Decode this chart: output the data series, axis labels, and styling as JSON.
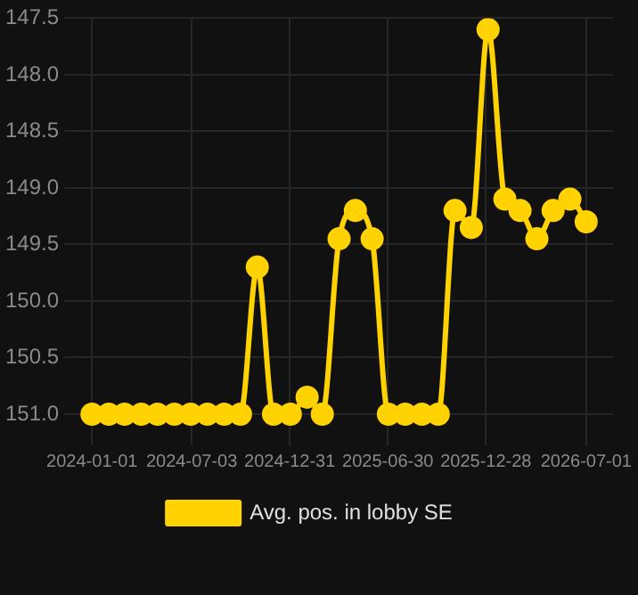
{
  "chart_data": {
    "type": "line",
    "x": [
      "2024-01",
      "2024-02",
      "2024-03",
      "2024-04",
      "2024-05",
      "2024-06",
      "2024-07",
      "2024-08",
      "2024-09",
      "2024-10",
      "2024-11",
      "2024-12",
      "2025-01",
      "2025-02",
      "2025-03",
      "2025-04",
      "2025-05",
      "2025-06",
      "2025-07",
      "2025-08",
      "2025-09",
      "2025-10",
      "2025-11",
      "2025-12",
      "2026-01",
      "2026-02",
      "2026-03",
      "2026-04",
      "2026-05",
      "2026-06",
      "2026-07"
    ],
    "series": [
      {
        "name": "Avg. pos. in lobby SE",
        "color": "#ffd200",
        "values": [
          151.0,
          151.0,
          151.0,
          151.0,
          151.0,
          151.0,
          151.0,
          151.0,
          151.0,
          151.0,
          149.7,
          151.0,
          151.0,
          150.85,
          151.0,
          149.45,
          149.2,
          149.45,
          151.0,
          151.0,
          151.0,
          151.0,
          149.2,
          149.35,
          147.6,
          149.1,
          149.2,
          149.45,
          149.2,
          149.1,
          149.3
        ]
      }
    ],
    "xlim": [
      "2023-12-07",
      "2026-08-20"
    ],
    "xticks": [
      "2024-01-01",
      "2024-07-03",
      "2024-12-31",
      "2025-06-30",
      "2025-12-28",
      "2026-07-01"
    ],
    "ylim": [
      151.15,
      147.5
    ],
    "yticks": [
      {
        "value": 147.5,
        "label": "147.5"
      },
      {
        "value": 148,
        "label": "148.0"
      },
      {
        "value": 148.5,
        "label": "148.5"
      },
      {
        "value": 149,
        "label": "149.0"
      },
      {
        "value": 149.5,
        "label": "149.5"
      },
      {
        "value": 150,
        "label": "150.0"
      },
      {
        "value": 150.5,
        "label": "150.5"
      },
      {
        "value": 151,
        "label": "151.0"
      }
    ],
    "grid": true,
    "legend": "bottom",
    "marker": "circle",
    "line_style": "solid"
  }
}
